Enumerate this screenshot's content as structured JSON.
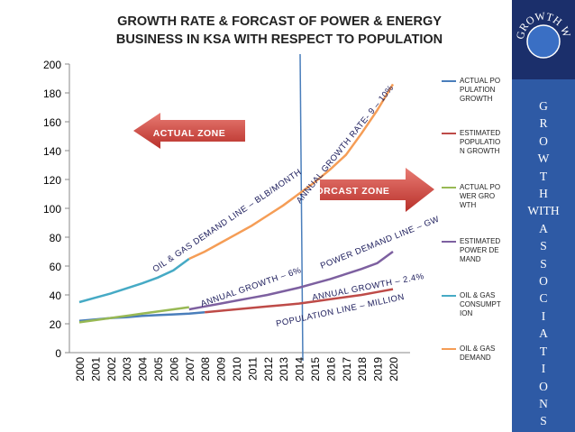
{
  "chart_data": {
    "type": "line",
    "title": "GROWTH RATE & FORCAST OF POWER & ENERGY BUSINESS IN KSA WITH RESPECT TO POPULATION",
    "categories": [
      "2000",
      "2001",
      "2002",
      "2003",
      "2004",
      "2005",
      "2006",
      "2007",
      "2008",
      "2009",
      "2010",
      "2011",
      "2012",
      "2013",
      "2014",
      "2015",
      "2016",
      "2017",
      "2018",
      "2019",
      "2020"
    ],
    "ylim": [
      0,
      200
    ],
    "yticks": [
      0,
      20,
      40,
      60,
      80,
      100,
      120,
      140,
      160,
      180,
      200
    ],
    "series": [
      {
        "name": "ACTUAL POPULATION GROWTH",
        "color": "#4a7ebb",
        "values": [
          22,
          23,
          24,
          24.5,
          25.5,
          26,
          26.5,
          27,
          28,
          null,
          null,
          null,
          null,
          null,
          null,
          null,
          null,
          null,
          null,
          null,
          null
        ]
      },
      {
        "name": "ESTIMATED POPULATION GROWTH",
        "color": "#be4b48",
        "values": [
          null,
          null,
          null,
          null,
          null,
          null,
          null,
          null,
          28,
          29,
          30,
          31,
          32,
          33,
          34,
          35.5,
          37,
          38.5,
          40,
          42,
          44
        ]
      },
      {
        "name": "ACTUAL POWER GROWTH",
        "color": "#98b954",
        "values": [
          21,
          22.5,
          24,
          25.5,
          27,
          28.5,
          30,
          31.5,
          null,
          null,
          null,
          null,
          null,
          null,
          null,
          null,
          null,
          null,
          null,
          null,
          null
        ]
      },
      {
        "name": "ESTIMATED POWER DEMAND",
        "color": "#7d60a0",
        "values": [
          null,
          null,
          null,
          null,
          null,
          null,
          null,
          30,
          32,
          34,
          36,
          38,
          40,
          42.5,
          45,
          48,
          51,
          54.5,
          58,
          62,
          70
        ]
      },
      {
        "name": "OIL & GAS CONSUMPTION",
        "color": "#46aac5",
        "values": [
          35,
          38,
          41,
          44.5,
          48,
          52,
          57,
          65,
          null,
          null,
          null,
          null,
          null,
          null,
          null,
          null,
          null,
          null,
          null,
          null,
          null
        ]
      },
      {
        "name": "OIL & GAS DEMAND",
        "color": "#f59d56",
        "values": [
          null,
          null,
          null,
          null,
          null,
          null,
          null,
          65,
          70,
          76,
          82,
          88,
          95,
          102,
          110,
          118,
          127,
          137,
          152,
          168,
          186
        ]
      }
    ],
    "annotations": [
      "ACTUAL ZONE",
      "FORCAST ZONE",
      "OIL & GAS DEMAND LINE – BLB/MONTH",
      "ANNUAL GROWTH RATE- 9 – 10%",
      "POWER DEMAND LINE – GW",
      "ANNUAL GROWTH – 6%",
      "ANNUAL GROWTH – 2.4%",
      "POPULATION LINE – MILLION"
    ]
  },
  "sidebar": {
    "logo": "GROWTH WITH INNOVATIONS",
    "letters": [
      "G",
      "R",
      "O",
      "W",
      "T",
      "H",
      "WITH",
      "A",
      "S",
      "S",
      "O",
      "C",
      "I",
      "A",
      "T",
      "I",
      "O",
      "N",
      "S"
    ]
  }
}
